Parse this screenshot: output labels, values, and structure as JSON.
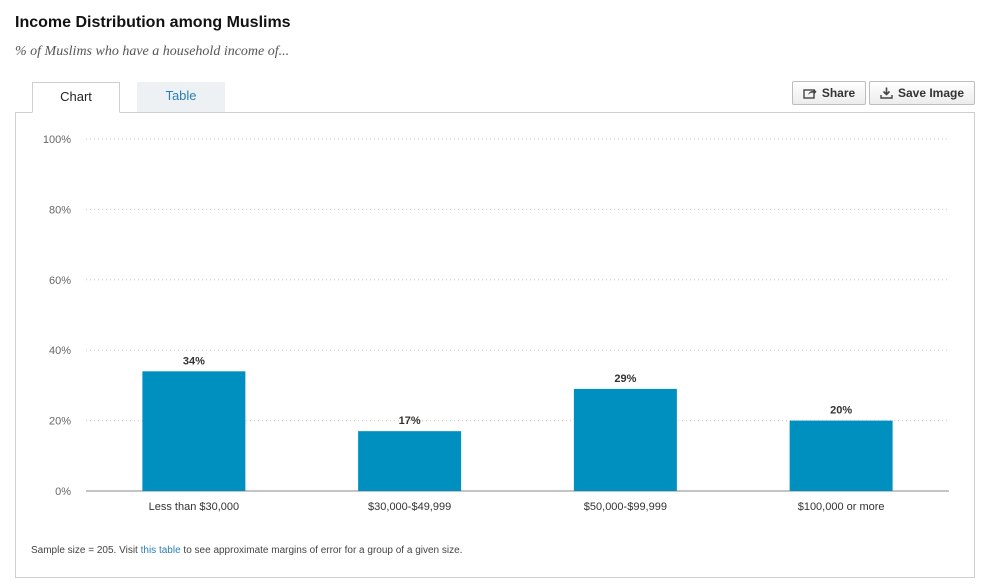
{
  "header": {
    "title": "Income Distribution among Muslims",
    "subtitle": "% of Muslims who have a household income of..."
  },
  "tabs": [
    {
      "label": "Chart",
      "active": true
    },
    {
      "label": "Table",
      "active": false
    }
  ],
  "toolbar": {
    "share_label": "Share",
    "save_label": "Save Image",
    "share_icon": "share-icon",
    "save_icon": "download-icon"
  },
  "footnote": {
    "prefix": "Sample size = 205. Visit ",
    "link": "this table",
    "suffix": " to see approximate margins of error for a group of a given size."
  },
  "colors": {
    "bar": "#0090c0",
    "link": "#2a7fb8",
    "grid": "#c8c8c8"
  },
  "chart_data": {
    "type": "bar",
    "categories": [
      "Less than $30,000",
      "$30,000-$49,999",
      "$50,000-$99,999",
      "$100,000 or more"
    ],
    "values": [
      34,
      17,
      29,
      20
    ],
    "data_labels": [
      "34%",
      "17%",
      "29%",
      "20%"
    ],
    "ylim": [
      0,
      100
    ],
    "yticks": [
      0,
      20,
      40,
      60,
      80,
      100
    ],
    "ytick_labels": [
      "0%",
      "20%",
      "40%",
      "60%",
      "80%",
      "100%"
    ],
    "grid": true,
    "xlabel": "",
    "ylabel": ""
  }
}
